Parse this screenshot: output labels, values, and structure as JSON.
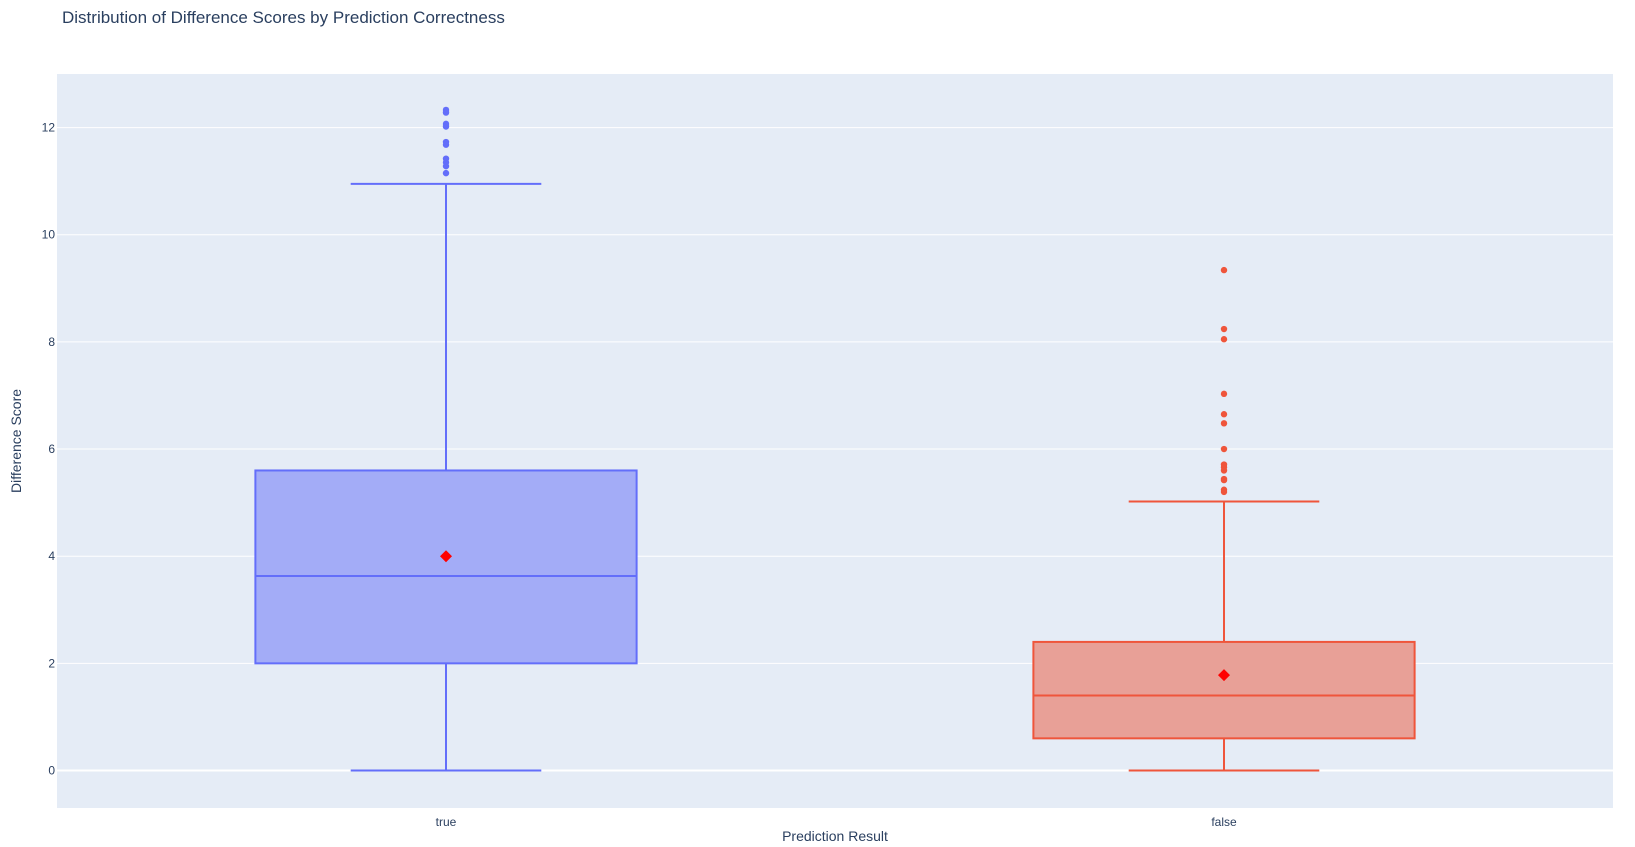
{
  "chart_data": {
    "type": "box",
    "title": "Distribution of Difference Scores by Prediction Correctness",
    "xlabel": "Prediction Result",
    "ylabel": "Difference Score",
    "categories": [
      "true",
      "false"
    ],
    "ylim": [
      -0.7,
      13.0
    ],
    "yticks": [
      0,
      2,
      4,
      6,
      8,
      10,
      12
    ],
    "grid": true,
    "background": "#e5ecf6",
    "mean_marker_color": "#ff0000",
    "series": [
      {
        "category": "true",
        "color": "#636efa",
        "fill": "#a3acf7",
        "min": 0,
        "q1": 2.0,
        "median": 3.63,
        "q3": 5.6,
        "max": 10.95,
        "mean": 4.0,
        "outliers": [
          11.15,
          11.28,
          11.35,
          11.42,
          11.68,
          11.73,
          12.02,
          12.07,
          12.28,
          12.33
        ]
      },
      {
        "category": "false",
        "color": "#ef553b",
        "fill": "#e8a097",
        "min": 0,
        "q1": 0.6,
        "median": 1.4,
        "q3": 2.4,
        "max": 5.02,
        "mean": 1.78,
        "outliers": [
          5.2,
          5.24,
          5.42,
          5.44,
          5.6,
          5.66,
          5.71,
          6.0,
          6.48,
          6.65,
          7.03,
          8.05,
          8.24,
          9.34
        ]
      }
    ]
  }
}
